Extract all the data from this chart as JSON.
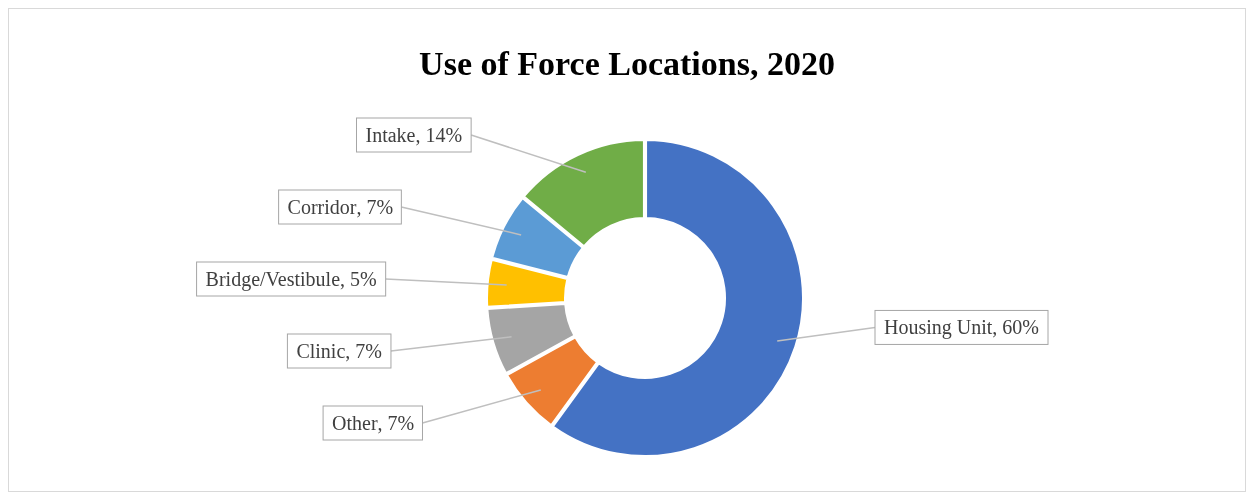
{
  "chart_data": {
    "type": "donut",
    "title": "Use of Force Locations, 2020",
    "categories": [
      "Housing Unit",
      "Other",
      "Clinic",
      "Bridge/Vestibule",
      "Corridor",
      "Intake"
    ],
    "values": [
      60,
      7,
      7,
      5,
      7,
      14
    ],
    "value_labels": [
      ", 60%",
      ", 7%",
      ", 7%",
      ", 5%",
      ", 7%",
      ", 14%"
    ],
    "colors": [
      "#4472c4",
      "#ed7d31",
      "#a5a5a5",
      "#ffc000",
      "#5b9bd5",
      "#70ad47"
    ]
  }
}
